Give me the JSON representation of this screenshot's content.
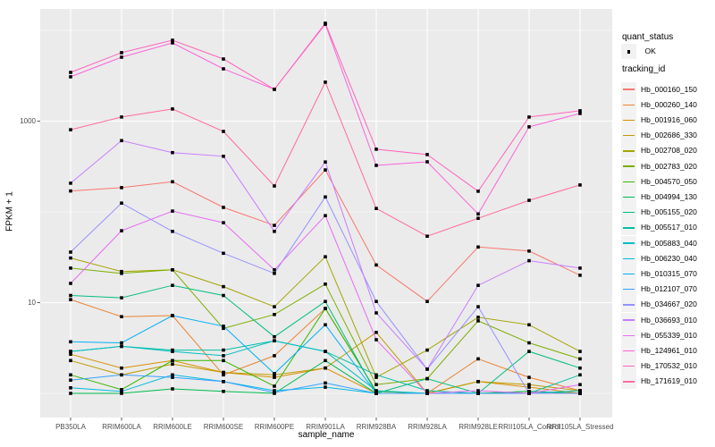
{
  "chart_data": {
    "type": "line",
    "title": "",
    "xlabel": "sample_name",
    "ylabel": "FPKM + 1",
    "y_scale": "log10",
    "ylim": [
      0.53,
      17000
    ],
    "grid": "on",
    "legend_position": "right",
    "y_ticks": [
      {
        "value": 1000,
        "label": "1000"
      },
      {
        "value": 10,
        "label": "10"
      }
    ],
    "x_categories": [
      "PB350LA",
      "RRIM600LA",
      "RRIM600LE",
      "RRIM600SE",
      "RRIM600PE",
      "RRIM901LA",
      "RRIM928BA",
      "RRIM928LA",
      "RRIM928LE",
      "RRII105LA_Control",
      "RRII105LA_Stressed"
    ],
    "legend": {
      "quant_status": {
        "title": "quant_status",
        "entries": [
          {
            "label": "OK",
            "symbol": "black-point"
          }
        ]
      },
      "tracking_id": {
        "title": "tracking_id"
      }
    },
    "series": [
      {
        "id": "Hb_000160_150",
        "color": "#F8766D",
        "fpkm_plus_1": [
          170,
          185,
          215,
          112,
          71,
          290,
          26,
          10.3,
          41,
          37,
          20
        ]
      },
      {
        "id": "Hb_000260_140",
        "color": "#EA8331",
        "fpkm_plus_1": [
          10.8,
          7.0,
          7.2,
          1.6,
          2.6,
          8.6,
          1.05,
          1.0,
          2.4,
          1.5,
          1.07
        ]
      },
      {
        "id": "Hb_001916_060",
        "color": "#D89000",
        "fpkm_plus_1": [
          2.7,
          1.9,
          2.3,
          1.7,
          1.5,
          1.9,
          1.0,
          1.0,
          1.35,
          1.17,
          1.0
        ]
      },
      {
        "id": "Hb_002686_330",
        "color": "#C09B00",
        "fpkm_plus_1": [
          2.3,
          1.6,
          2.1,
          1.7,
          1.6,
          1.9,
          4.7,
          1.0,
          1.35,
          1.25,
          1.07
        ]
      },
      {
        "id": "Hb_002708_020",
        "color": "#A3A500",
        "fpkm_plus_1": [
          31,
          22,
          23,
          15,
          9.0,
          32,
          1.5,
          3.0,
          6.9,
          5.7,
          2.9
        ]
      },
      {
        "id": "Hb_002783_020",
        "color": "#7CAE00",
        "fpkm_plus_1": [
          24,
          21,
          23,
          5.2,
          7.4,
          16,
          1.25,
          1.45,
          6.3,
          3.6,
          2.4
        ]
      },
      {
        "id": "Hb_004570_050",
        "color": "#39B600",
        "fpkm_plus_1": [
          1.6,
          1.1,
          2.3,
          2.3,
          1.2,
          8.6,
          1.05,
          1.0,
          1.0,
          1.05,
          1.0
        ]
      },
      {
        "id": "Hb_004994_130",
        "color": "#00BB4E",
        "fpkm_plus_1": [
          1.0,
          1.0,
          1.12,
          1.05,
          1.0,
          2.3,
          1.0,
          1.0,
          1.0,
          1.05,
          1.0
        ]
      },
      {
        "id": "Hb_005155_020",
        "color": "#00BF7D",
        "fpkm_plus_1": [
          12,
          11.3,
          15.5,
          12,
          4.2,
          10.3,
          1.0,
          1.45,
          1.0,
          2.9,
          1.9
        ]
      },
      {
        "id": "Hb_005517_010",
        "color": "#00C1A3",
        "fpkm_plus_1": [
          2.9,
          3.3,
          3.0,
          3.0,
          3.8,
          2.9,
          1.6,
          1.07,
          1.0,
          1.0,
          1.6
        ]
      },
      {
        "id": "Hb_005883_040",
        "color": "#00BFC4",
        "fpkm_plus_1": [
          2.9,
          3.3,
          2.9,
          2.6,
          3.8,
          2.9,
          1.07,
          1.0,
          1.0,
          1.0,
          1.07
        ]
      },
      {
        "id": "Hb_006230_040",
        "color": "#00BAE0",
        "fpkm_plus_1": [
          1.15,
          1.05,
          1.6,
          1.35,
          1.07,
          1.17,
          1.0,
          1.0,
          1.0,
          1.0,
          1.0
        ]
      },
      {
        "id": "Hb_010315_070",
        "color": "#00B0F6",
        "fpkm_plus_1": [
          3.7,
          3.6,
          7.2,
          5.5,
          1.65,
          5.7,
          1.0,
          1.0,
          1.0,
          1.0,
          1.0
        ]
      },
      {
        "id": "Hb_012107_070",
        "color": "#35A2FF",
        "fpkm_plus_1": [
          1.4,
          1.6,
          1.5,
          1.35,
          1.02,
          1.3,
          1.0,
          1.0,
          1.0,
          1.0,
          1.0
        ]
      },
      {
        "id": "Hb_034667_020",
        "color": "#9590FF",
        "fpkm_plus_1": [
          36,
          125,
          61,
          35,
          21,
          146,
          10.3,
          1.85,
          9.0,
          1.0,
          1.0
        ]
      },
      {
        "id": "Hb_036693_010",
        "color": "#C77CFF",
        "fpkm_plus_1": [
          207,
          610,
          450,
          410,
          61,
          355,
          7.7,
          1.85,
          15.5,
          29,
          24
        ]
      },
      {
        "id": "Hb_055339_010",
        "color": "#E76BF3",
        "fpkm_plus_1": [
          16.3,
          62,
          102,
          76,
          23,
          91,
          3.9,
          1.0,
          1.07,
          1.0,
          1.25
        ]
      },
      {
        "id": "Hb_124961_010",
        "color": "#FA62DB",
        "fpkm_plus_1": [
          3080,
          5060,
          7280,
          3770,
          2240,
          11700,
          325,
          356,
          95,
          865,
          1215
        ]
      },
      {
        "id": "Hb_170532_010",
        "color": "#FF62BC",
        "fpkm_plus_1": [
          3440,
          5680,
          7800,
          4840,
          2240,
          12000,
          490,
          428,
          169,
          1110,
          1300
        ]
      },
      {
        "id": "Hb_171619_010",
        "color": "#FF6A98",
        "fpkm_plus_1": [
          805,
          1110,
          1360,
          770,
          193,
          2690,
          109,
          54,
          85,
          134,
          198
        ]
      }
    ],
    "colors": {
      "panel_bg": "#EBEBEB",
      "grid": "#FFFFFF",
      "point": "#000000",
      "axis_text": "#4D4D4D",
      "tick": "#333333",
      "legend_key_bg": "#F2F2F2"
    }
  }
}
